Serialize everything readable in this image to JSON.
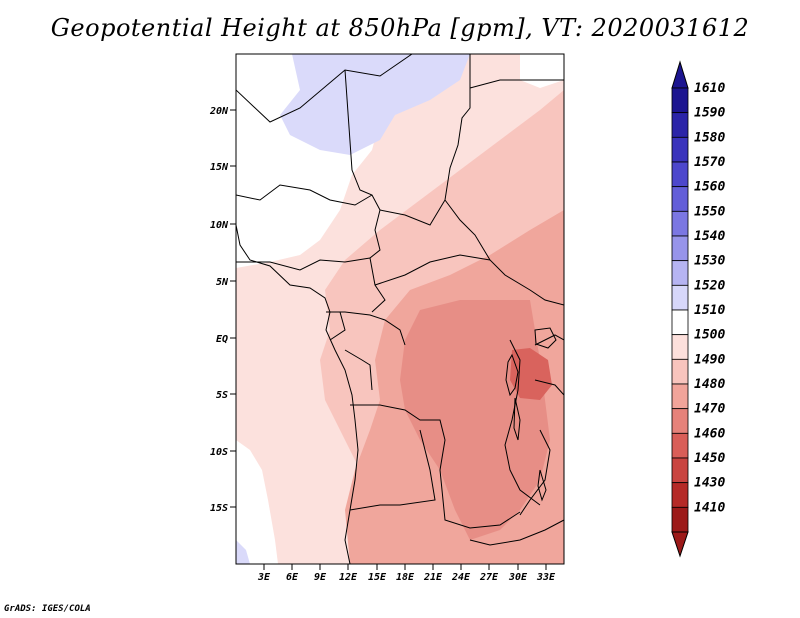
{
  "title": "Geopotential Height at 850hPa [gpm], VT: 2020031612",
  "credit": "GrADS: IGES/COLA",
  "map": {
    "lat_labels": [
      "20N",
      "15N",
      "10N",
      "5N",
      "EQ",
      "5S",
      "10S",
      "15S"
    ],
    "lon_labels": [
      "3E",
      "6E",
      "9E",
      "12E",
      "15E",
      "18E",
      "21E",
      "24E",
      "27E",
      "30E",
      "33E"
    ]
  },
  "colorbar": {
    "labels": [
      "1610",
      "1590",
      "1580",
      "1570",
      "1560",
      "1550",
      "1540",
      "1530",
      "1520",
      "1510",
      "1500",
      "1490",
      "1480",
      "1470",
      "1460",
      "1450",
      "1430",
      "1410"
    ],
    "colors": [
      "#1c1590",
      "#2b24a8",
      "#3a33bc",
      "#4d47cc",
      "#635ed8",
      "#7b77e2",
      "#9794ea",
      "#b6b4f2",
      "#d7d7fa",
      "#ffffff",
      "#fde0dc",
      "#f8c4bd",
      "#f1a49a",
      "#e6827a",
      "#d95e58",
      "#c94440",
      "#b52a27",
      "#9c1a19"
    ]
  }
}
